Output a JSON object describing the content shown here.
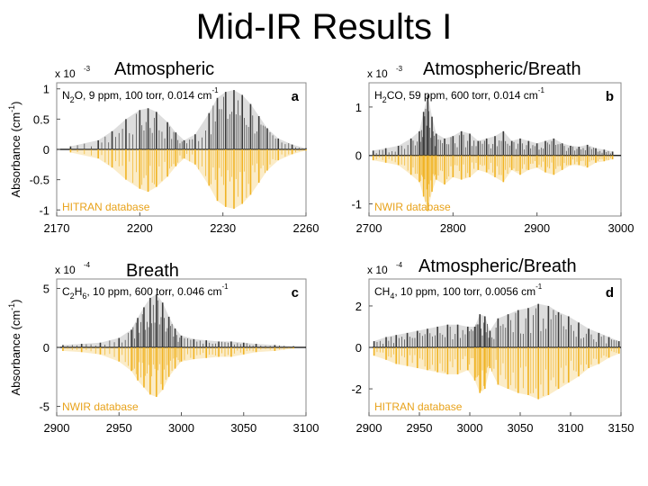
{
  "slide": {
    "title": "Mid-IR Results I",
    "captions": {
      "a": "Atmospheric",
      "b": "Atmospheric/Breath",
      "c": "Breath",
      "d": "Atmospheric/Breath"
    }
  },
  "colors": {
    "measured": "#3a3a3a",
    "measured_fill": "#9a9a9a",
    "database": "#f0b323",
    "database_label": "#e8a21a"
  },
  "chart_data": [
    {
      "id": "a",
      "type": "line",
      "panel_letter": "a",
      "annotation": "N2O, 9 ppm, 100 torr, 0.014 cm-1",
      "annotation_parts": {
        "species": "N",
        "sub": "2",
        "rest": "O, 9 ppm, 100 torr, 0.014 cm",
        "sup": "-1"
      },
      "multiplier": {
        "base": "x 10",
        "exp": "-3"
      },
      "ylabel": "Absorbance (cm-1)",
      "xlim": [
        2170,
        2260
      ],
      "ylim": [
        -1.1,
        1.1
      ],
      "xticks": [
        2170,
        2200,
        2230,
        2260
      ],
      "xtick_labels": [
        "2170",
        "2200",
        "2230",
        "2260"
      ],
      "yticks": [
        1,
        0.5,
        0,
        -0.5,
        -1
      ],
      "ytick_labels": [
        "1",
        "0.5",
        "0",
        "-0.5",
        "-1"
      ],
      "series": [
        {
          "name": "",
          "role": "measured",
          "x": [
            2175,
            2185,
            2190,
            2195,
            2200,
            2203,
            2206,
            2210,
            2213,
            2216,
            2220,
            2225,
            2228,
            2231,
            2234,
            2237,
            2240,
            2243,
            2246,
            2250,
            2255,
            2260
          ],
          "y": [
            0.05,
            0.15,
            0.3,
            0.5,
            0.65,
            0.68,
            0.62,
            0.45,
            0.28,
            0.15,
            0.25,
            0.6,
            0.85,
            0.95,
            0.98,
            0.9,
            0.75,
            0.55,
            0.35,
            0.18,
            0.08,
            0.02
          ]
        },
        {
          "name": "HITRAN database",
          "role": "database",
          "x": [
            2175,
            2185,
            2190,
            2195,
            2200,
            2203,
            2206,
            2210,
            2213,
            2216,
            2220,
            2225,
            2228,
            2231,
            2234,
            2237,
            2240,
            2243,
            2246,
            2250,
            2255,
            2260
          ],
          "y": [
            -0.05,
            -0.15,
            -0.3,
            -0.5,
            -0.65,
            -0.7,
            -0.62,
            -0.45,
            -0.28,
            -0.15,
            -0.25,
            -0.6,
            -0.85,
            -0.95,
            -0.98,
            -0.9,
            -0.75,
            -0.55,
            -0.35,
            -0.18,
            -0.08,
            -0.02
          ]
        }
      ]
    },
    {
      "id": "b",
      "type": "line",
      "panel_letter": "b",
      "annotation": "H2CO, 59 ppm, 600 torr, 0.014 cm-1",
      "annotation_parts": {
        "species": "H",
        "sub": "2",
        "rest": "CO, 59 ppm, 600 torr, 0.014 cm",
        "sup": "-1"
      },
      "multiplier": {
        "base": "x 10",
        "exp": "-3"
      },
      "xlim": [
        2700,
        3000
      ],
      "ylim": [
        -1.25,
        1.5
      ],
      "xticks": [
        2700,
        2800,
        2900,
        3000
      ],
      "xtick_labels": [
        "2700",
        "2800",
        "2900",
        "3000"
      ],
      "yticks": [
        1,
        0,
        -1
      ],
      "ytick_labels": [
        "1",
        "0",
        "-1"
      ],
      "series": [
        {
          "name": "",
          "role": "measured",
          "x": [
            2705,
            2720,
            2735,
            2750,
            2760,
            2765,
            2770,
            2775,
            2780,
            2790,
            2800,
            2810,
            2820,
            2830,
            2840,
            2850,
            2860,
            2870,
            2880,
            2890,
            2900,
            2910,
            2920,
            2930,
            2940,
            2950,
            2960,
            2970,
            2980,
            2990
          ],
          "y": [
            0.1,
            0.15,
            0.2,
            0.35,
            0.5,
            0.9,
            1.25,
            0.8,
            0.45,
            0.35,
            0.4,
            0.5,
            0.45,
            0.3,
            0.35,
            0.4,
            0.5,
            0.3,
            0.35,
            0.3,
            0.25,
            0.3,
            0.35,
            0.25,
            0.2,
            0.18,
            0.22,
            0.15,
            0.12,
            0.08
          ]
        },
        {
          "name": "NWIR database",
          "role": "database",
          "x": [
            2705,
            2720,
            2735,
            2750,
            2760,
            2765,
            2770,
            2775,
            2780,
            2790,
            2800,
            2810,
            2820,
            2830,
            2840,
            2850,
            2860,
            2870,
            2880,
            2890,
            2900,
            2910,
            2920,
            2930,
            2940,
            2950,
            2960,
            2970,
            2980,
            2990
          ],
          "y": [
            -0.1,
            -0.15,
            -0.2,
            -0.4,
            -0.55,
            -0.85,
            -1.15,
            -0.75,
            -0.5,
            -0.6,
            -0.45,
            -0.5,
            -0.45,
            -0.3,
            -0.35,
            -0.45,
            -0.55,
            -0.3,
            -0.4,
            -0.3,
            -0.25,
            -0.35,
            -0.4,
            -0.3,
            -0.2,
            -0.2,
            -0.25,
            -0.15,
            -0.12,
            -0.08
          ]
        }
      ]
    },
    {
      "id": "c",
      "type": "line",
      "panel_letter": "c",
      "annotation": "C2H6, 10 ppm, 600 torr, 0.046 cm-1",
      "annotation_parts": {
        "species": "C",
        "sub": "2",
        "mid": "H",
        "sub2": "6",
        "rest": ", 10 ppm, 600 torr, 0.046 cm",
        "sup": "-1"
      },
      "multiplier": {
        "base": "x 10",
        "exp": "-4"
      },
      "ylabel": "Absorbance (cm-1)",
      "xlim": [
        2900,
        3100
      ],
      "ylim": [
        -5.8,
        5.8
      ],
      "xticks": [
        2900,
        2950,
        3000,
        3050,
        3100
      ],
      "xtick_labels": [
        "2900",
        "2950",
        "3000",
        "3050",
        "3100"
      ],
      "yticks": [
        5,
        0,
        -5
      ],
      "ytick_labels": [
        "5",
        "0",
        "-5"
      ],
      "series": [
        {
          "name": "",
          "role": "measured",
          "x": [
            2905,
            2920,
            2935,
            2950,
            2960,
            2965,
            2970,
            2975,
            2980,
            2985,
            2990,
            2995,
            3000,
            3010,
            3020,
            3030,
            3040,
            3050,
            3060,
            3075,
            3090
          ],
          "y": [
            0.2,
            0.3,
            0.4,
            0.8,
            1.5,
            2.5,
            3.4,
            4.2,
            4.5,
            3.8,
            2.6,
            1.6,
            1.0,
            0.7,
            0.6,
            0.5,
            0.5,
            0.4,
            0.3,
            0.2,
            0.1
          ]
        },
        {
          "name": "NWIR database",
          "role": "database",
          "x": [
            2905,
            2920,
            2935,
            2950,
            2960,
            2965,
            2970,
            2975,
            2980,
            2985,
            2990,
            2995,
            3000,
            3010,
            3020,
            3030,
            3040,
            3050,
            3060,
            3075,
            3090
          ],
          "y": [
            -0.3,
            -0.4,
            -0.6,
            -1.2,
            -2.0,
            -2.8,
            -3.4,
            -4.0,
            -4.2,
            -3.6,
            -2.5,
            -1.8,
            -1.2,
            -1.0,
            -0.9,
            -0.8,
            -0.8,
            -0.6,
            -0.4,
            -0.3,
            -0.1
          ]
        }
      ]
    },
    {
      "id": "d",
      "type": "line",
      "panel_letter": "d",
      "annotation": "CH4, 10 ppm, 100 torr, 0.0056 cm-1",
      "annotation_parts": {
        "species": "CH",
        "sub": "4",
        "rest": ", 10 ppm, 100 torr, 0.0056 cm",
        "sup": "-1"
      },
      "multiplier": {
        "base": "x 10",
        "exp": "-4"
      },
      "xlim": [
        2900,
        3150
      ],
      "ylim": [
        -3.3,
        3.3
      ],
      "xticks": [
        2900,
        2950,
        3000,
        3050,
        3100,
        3150
      ],
      "xtick_labels": [
        "2900",
        "2950",
        "3000",
        "3050",
        "3100",
        "3150"
      ],
      "yticks": [
        2,
        0,
        -2
      ],
      "ytick_labels": [
        "2",
        "0",
        "-2"
      ],
      "series": [
        {
          "name": "",
          "role": "measured",
          "x": [
            2905,
            2917,
            2927,
            2938,
            2948,
            2958,
            2968,
            2978,
            2988,
            2998,
            3005,
            3010,
            3015,
            3020,
            3028,
            3038,
            3048,
            3058,
            3068,
            3078,
            3088,
            3098,
            3108,
            3118,
            3128,
            3138,
            3148
          ],
          "y": [
            0.3,
            0.5,
            0.6,
            0.7,
            0.8,
            0.9,
            1.0,
            1.1,
            1.1,
            1.0,
            1.0,
            1.6,
            1.5,
            0.8,
            1.4,
            1.6,
            1.8,
            1.9,
            2.1,
            2.0,
            1.7,
            1.5,
            1.2,
            0.9,
            0.7,
            0.5,
            0.3
          ]
        },
        {
          "name": "HITRAN database",
          "role": "database",
          "x": [
            2905,
            2917,
            2927,
            2938,
            2948,
            2958,
            2968,
            2978,
            2988,
            2998,
            3005,
            3010,
            3015,
            3020,
            3028,
            3038,
            3048,
            3058,
            3068,
            3078,
            3088,
            3098,
            3108,
            3118,
            3128,
            3138,
            3148
          ],
          "y": [
            -0.4,
            -0.6,
            -0.8,
            -0.9,
            -1.0,
            -1.1,
            -1.2,
            -1.3,
            -1.3,
            -1.1,
            -1.6,
            -2.2,
            -2.0,
            -1.0,
            -1.8,
            -2.0,
            -2.2,
            -2.3,
            -2.5,
            -2.3,
            -2.0,
            -1.7,
            -1.4,
            -1.0,
            -0.8,
            -0.5,
            -0.3
          ]
        }
      ]
    }
  ]
}
